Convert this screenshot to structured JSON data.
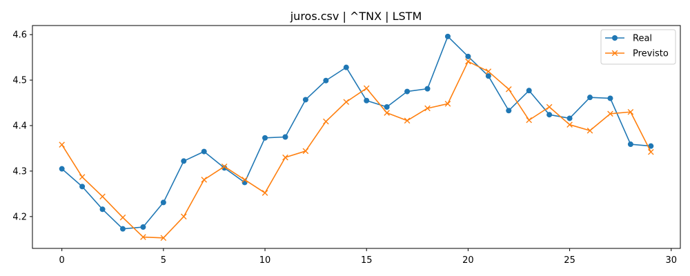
{
  "chart_data": {
    "type": "line",
    "title": "juros.csv | ^TNX | LSTM",
    "xlabel": "",
    "ylabel": "",
    "xlim": [
      -1.45,
      30.45
    ],
    "ylim": [
      4.13,
      4.62
    ],
    "x_ticks": [
      0,
      5,
      10,
      15,
      20,
      25,
      30
    ],
    "y_ticks": [
      4.2,
      4.3,
      4.4,
      4.5,
      4.6
    ],
    "x_tick_labels": [
      "0",
      "5",
      "10",
      "15",
      "20",
      "25",
      "30"
    ],
    "y_tick_labels": [
      "4.2",
      "4.3",
      "4.4",
      "4.5",
      "4.6"
    ],
    "grid": false,
    "legend_position": "top-right",
    "x": [
      0,
      1,
      2,
      3,
      4,
      5,
      6,
      7,
      8,
      9,
      10,
      11,
      12,
      13,
      14,
      15,
      16,
      17,
      18,
      19,
      20,
      21,
      22,
      23,
      24,
      25,
      26,
      27,
      28,
      29
    ],
    "series": [
      {
        "name": "Real",
        "color": "#1f77b4",
        "marker": "circle",
        "values": [
          4.305,
          4.266,
          4.216,
          4.173,
          4.177,
          4.231,
          4.322,
          4.343,
          4.307,
          4.275,
          4.373,
          4.375,
          4.457,
          4.499,
          4.528,
          4.455,
          4.441,
          4.475,
          4.481,
          4.596,
          4.552,
          4.509,
          4.433,
          4.477,
          4.424,
          4.416,
          4.462,
          4.46,
          4.359,
          4.355
        ]
      },
      {
        "name": "Previsto",
        "color": "#ff7f0e",
        "marker": "x",
        "values": [
          4.358,
          4.287,
          4.244,
          4.198,
          4.155,
          4.153,
          4.2,
          4.281,
          4.31,
          4.281,
          4.252,
          4.33,
          4.344,
          4.409,
          4.452,
          4.482,
          4.428,
          4.411,
          4.438,
          4.448,
          4.541,
          4.519,
          4.48,
          4.412,
          4.441,
          4.402,
          4.389,
          4.426,
          4.43,
          4.342
        ]
      }
    ]
  }
}
